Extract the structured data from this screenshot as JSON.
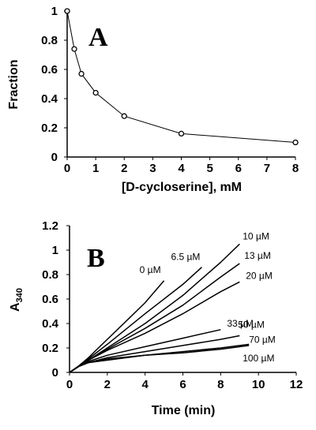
{
  "chart_data": [
    {
      "type": "line",
      "panel_label": "A",
      "xlabel": "[D-cycloserine], mM",
      "ylabel": "Fraction",
      "xlim": [
        0,
        8
      ],
      "ylim": [
        0,
        1
      ],
      "xticks": [
        "0",
        "1",
        "2",
        "3",
        "4",
        "5",
        "6",
        "7",
        "8"
      ],
      "yticks": [
        "0",
        "0.2",
        "0.4",
        "0.6",
        "0.8",
        "1"
      ],
      "series": [
        {
          "x": [
            0,
            0.25,
            0.5,
            1,
            2,
            4,
            8
          ],
          "y": [
            1.0,
            0.74,
            0.57,
            0.44,
            0.28,
            0.16,
            0.1
          ]
        }
      ]
    },
    {
      "type": "line",
      "panel_label": "B",
      "xlabel": "Time (min)",
      "ylabel": "A340",
      "xlim": [
        0,
        12
      ],
      "ylim": [
        0,
        1.2
      ],
      "xticks": [
        "0",
        "2",
        "4",
        "6",
        "8",
        "10",
        "12"
      ],
      "yticks": [
        "0",
        "0.2",
        "0.4",
        "0.6",
        "0.8",
        "1",
        "1.2"
      ],
      "series": [
        {
          "name": "0 µM",
          "x": [
            0,
            0.5,
            1,
            2,
            3,
            4,
            5
          ],
          "y": [
            0,
            0.055,
            0.12,
            0.27,
            0.42,
            0.57,
            0.75
          ]
        },
        {
          "name": "6.5 µM",
          "x": [
            0,
            0.5,
            1,
            2,
            4,
            6,
            7
          ],
          "y": [
            0,
            0.05,
            0.11,
            0.23,
            0.48,
            0.72,
            0.86
          ]
        },
        {
          "name": "10 µM",
          "x": [
            0,
            0.5,
            1,
            2,
            4,
            6,
            8,
            9
          ],
          "y": [
            0,
            0.05,
            0.1,
            0.2,
            0.4,
            0.63,
            0.9,
            1.05
          ]
        },
        {
          "name": "13 µM",
          "x": [
            0,
            0.5,
            1,
            2,
            4,
            6,
            8,
            9
          ],
          "y": [
            0,
            0.05,
            0.1,
            0.19,
            0.36,
            0.55,
            0.78,
            0.89
          ]
        },
        {
          "name": "20 µM",
          "x": [
            0,
            0.5,
            1,
            2,
            4,
            6,
            8,
            9
          ],
          "y": [
            0,
            0.05,
            0.1,
            0.18,
            0.32,
            0.48,
            0.66,
            0.74
          ]
        },
        {
          "name": "33 µM",
          "x": [
            0,
            0.5,
            1,
            2,
            4,
            6,
            8
          ],
          "y": [
            0,
            0.05,
            0.09,
            0.14,
            0.21,
            0.28,
            0.35
          ]
        },
        {
          "name": "50 µM",
          "x": [
            0,
            0.5,
            1,
            2,
            4,
            6,
            8,
            9
          ],
          "y": [
            0,
            0.05,
            0.08,
            0.12,
            0.17,
            0.22,
            0.27,
            0.3
          ]
        },
        {
          "name": "70 µM",
          "x": [
            0,
            0.5,
            1,
            2,
            4,
            6,
            8,
            9.5
          ],
          "y": [
            0,
            0.05,
            0.08,
            0.11,
            0.14,
            0.17,
            0.2,
            0.23
          ]
        },
        {
          "name": "100 µM",
          "x": [
            0,
            0.5,
            1,
            2,
            4,
            6,
            8,
            9.5
          ],
          "y": [
            0,
            0.05,
            0.08,
            0.1,
            0.14,
            0.16,
            0.19,
            0.22
          ]
        }
      ]
    }
  ]
}
